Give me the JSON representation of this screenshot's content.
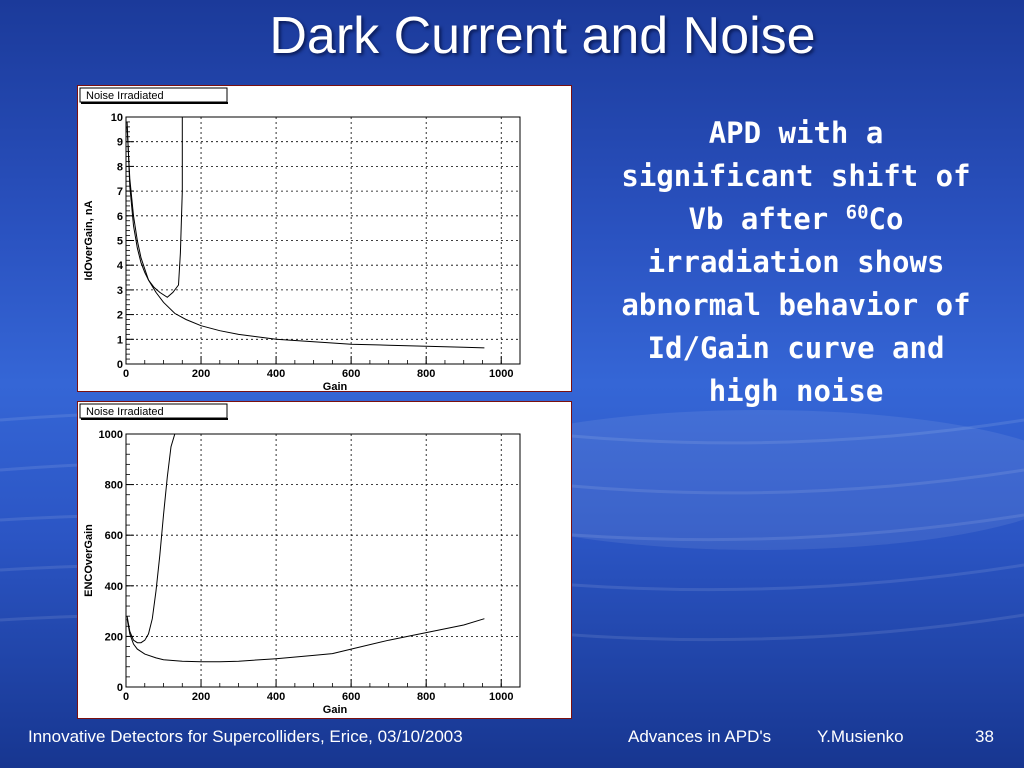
{
  "slide": {
    "title": "Dark Current and Noise",
    "caption": {
      "before_sup": "APD with a significant shift of Vb after ",
      "sup": "60",
      "after_sup": "Co irradiation shows abnormal behavior of Id/Gain curve and high noise"
    },
    "footer": {
      "left": "Innovative Detectors for Supercolliders, Erice, 03/10/2003",
      "center": "Advances in APD's",
      "author": "Y.Musienko",
      "page": "38"
    }
  },
  "chart_data": [
    {
      "type": "line",
      "legend": "Noise Irradiated",
      "xlabel": "Gain",
      "ylabel": "IdOverGain, nA",
      "xlim": [
        0,
        1050
      ],
      "ylim": [
        0,
        10
      ],
      "xticks": [
        "0",
        "200",
        "400",
        "600",
        "800",
        "1000"
      ],
      "yticks": [
        "0",
        "1",
        "2",
        "3",
        "4",
        "5",
        "6",
        "7",
        "8",
        "9",
        "10"
      ],
      "grid": true,
      "series": [
        {
          "x": [
            3,
            10,
            20,
            30,
            40,
            60,
            80,
            100,
            130,
            160,
            200,
            250,
            300,
            400,
            500,
            600,
            700,
            800,
            900,
            955
          ],
          "y": [
            9.6,
            7.5,
            6.0,
            5.0,
            4.3,
            3.4,
            2.9,
            2.5,
            2.05,
            1.8,
            1.55,
            1.35,
            1.2,
            1.0,
            0.9,
            0.8,
            0.76,
            0.72,
            0.68,
            0.65
          ]
        },
        {
          "x": [
            3,
            10,
            20,
            30,
            40,
            50,
            60,
            75,
            90,
            110,
            125,
            140,
            145,
            150,
            150
          ],
          "y": [
            9.8,
            7.2,
            5.6,
            4.7,
            4.1,
            3.7,
            3.4,
            3.1,
            2.9,
            2.7,
            2.9,
            3.2,
            4.5,
            7.0,
            10.0
          ]
        }
      ]
    },
    {
      "type": "line",
      "legend": "Noise Irradiated",
      "xlabel": "Gain",
      "ylabel": "ENCOverGain",
      "xlim": [
        0,
        1050
      ],
      "ylim": [
        0,
        1000
      ],
      "xticks": [
        "0",
        "200",
        "400",
        "600",
        "800",
        "1000"
      ],
      "yticks": [
        "0",
        "200",
        "400",
        "600",
        "800",
        "1000"
      ],
      "grid": true,
      "series": [
        {
          "x": [
            3,
            10,
            20,
            30,
            50,
            80,
            100,
            150,
            200,
            250,
            300,
            400,
            500,
            550,
            600,
            700,
            800,
            900,
            955
          ],
          "y": [
            270,
            210,
            170,
            150,
            130,
            115,
            108,
            102,
            100,
            100,
            102,
            112,
            125,
            132,
            150,
            185,
            215,
            245,
            270
          ]
        },
        {
          "x": [
            3,
            10,
            20,
            30,
            40,
            50,
            60,
            70,
            80,
            90,
            100,
            110,
            120,
            130
          ],
          "y": [
            280,
            220,
            185,
            175,
            175,
            185,
            210,
            270,
            380,
            520,
            680,
            830,
            950,
            1000
          ]
        }
      ]
    }
  ]
}
